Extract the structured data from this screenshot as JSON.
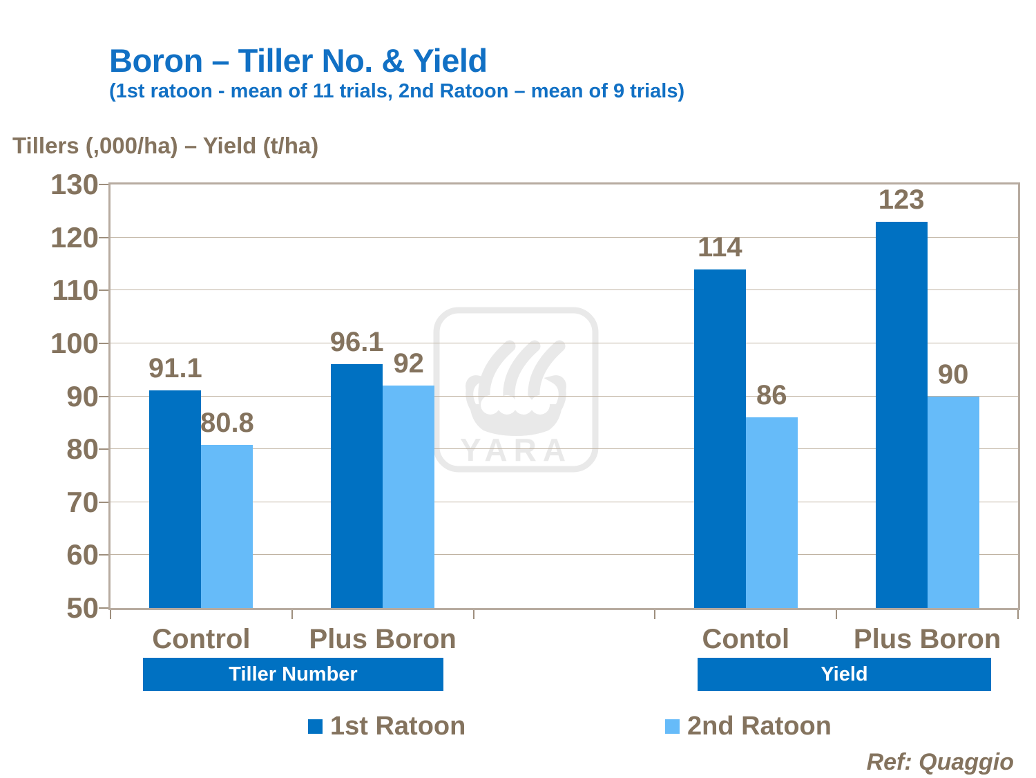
{
  "header": {
    "title": "Boron – Tiller No. & Yield",
    "subtitle": "(1st ratoon - mean of 11 trials, 2nd Ratoon – mean of 9 trials)"
  },
  "footer": {
    "ref": "Ref: Quaggio"
  },
  "watermark": {
    "text": "YARA"
  },
  "colors": {
    "title_blue": "#1170C4",
    "series1_blue": "#0071C2",
    "series2_blue": "#66BBF9",
    "taupe_text": "#84735E",
    "gridline": "#C0B3A2",
    "frame": "#B7ABA0",
    "band_blue": "#0071C2",
    "watermark_gray": "#E9E9E9"
  },
  "chart_data": {
    "type": "bar",
    "title": "Boron – Tiller No. & Yield",
    "subtitle": "(1st ratoon - mean of 11 trials, 2nd Ratoon – mean of 9 trials)",
    "ylabel": "Tillers (,000/ha) – Yield (t/ha)",
    "xlabel": "",
    "ylim": [
      50,
      130
    ],
    "ytick_step": 10,
    "grid": true,
    "legend_position": "bottom",
    "groups": [
      {
        "label": "Tiller Number",
        "categories": [
          "Control",
          "Plus Boron"
        ]
      },
      {
        "label": "Yield",
        "categories": [
          "Contol",
          "Plus Boron"
        ]
      }
    ],
    "categories": [
      "Control",
      "Plus Boron",
      "Contol",
      "Plus Boron"
    ],
    "series": [
      {
        "name": "1st Ratoon",
        "color": "#0071C2",
        "values": [
          91.1,
          96.1,
          114,
          123
        ]
      },
      {
        "name": "2nd Ratoon",
        "color": "#66BBF9",
        "values": [
          80.8,
          92,
          86,
          90
        ]
      }
    ],
    "value_labels": [
      [
        "91.1",
        "96.1",
        "114",
        "123"
      ],
      [
        "80.8",
        "92",
        "86",
        "90"
      ]
    ]
  }
}
